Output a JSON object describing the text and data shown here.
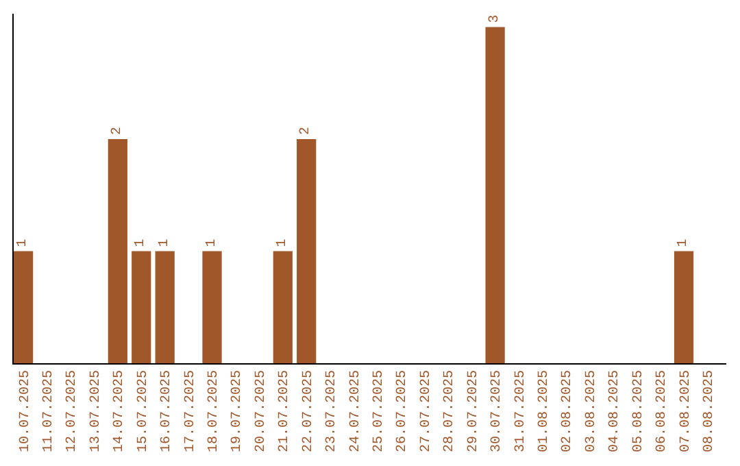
{
  "chart_data": {
    "type": "bar",
    "categories": [
      "10.07.2025",
      "11.07.2025",
      "12.07.2025",
      "13.07.2025",
      "14.07.2025",
      "15.07.2025",
      "16.07.2025",
      "17.07.2025",
      "18.07.2025",
      "19.07.2025",
      "20.07.2025",
      "21.07.2025",
      "22.07.2025",
      "23.07.2025",
      "24.07.2025",
      "25.07.2025",
      "26.07.2025",
      "27.07.2025",
      "28.07.2025",
      "29.07.2025",
      "30.07.2025",
      "31.07.2025",
      "01.08.2025",
      "02.08.2025",
      "03.08.2025",
      "04.08.2025",
      "05.08.2025",
      "06.08.2025",
      "07.08.2025",
      "08.08.2025"
    ],
    "values": [
      1,
      0,
      0,
      0,
      2,
      1,
      1,
      0,
      1,
      0,
      0,
      1,
      2,
      0,
      0,
      0,
      0,
      0,
      0,
      0,
      3,
      0,
      0,
      0,
      0,
      0,
      0,
      0,
      1,
      0
    ],
    "value_labels": [
      "1",
      null,
      null,
      null,
      "2",
      "1",
      "1",
      null,
      "1",
      null,
      null,
      "1",
      "2",
      null,
      null,
      null,
      null,
      null,
      null,
      null,
      "3",
      null,
      null,
      null,
      null,
      null,
      null,
      null,
      "1",
      null
    ],
    "color": "#a0572a",
    "tick_labels": "x"
  }
}
